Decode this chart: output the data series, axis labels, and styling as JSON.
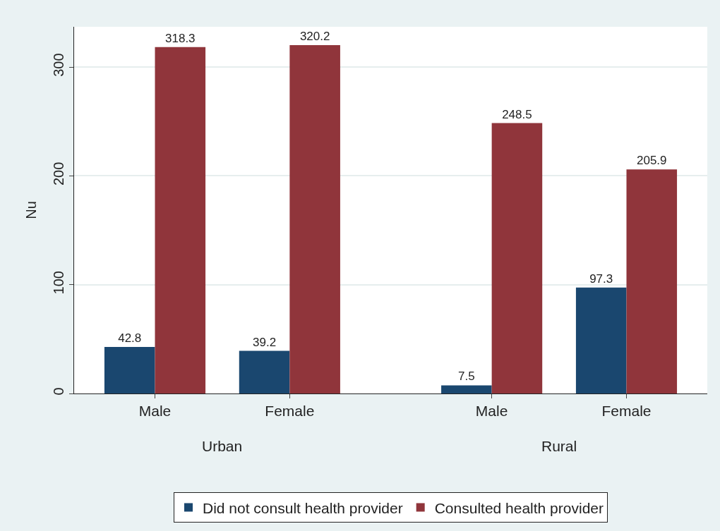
{
  "chart_data": {
    "type": "bar",
    "ylabel": "Nu",
    "categories": [
      "Male",
      "Female",
      "Male",
      "Female"
    ],
    "series": [
      {
        "name": "Did not consult health provider",
        "color": "#1a476f",
        "values": [
          42.8,
          39.2,
          7.5,
          97.3
        ]
      },
      {
        "name": "Consulted health provider",
        "color": "#90353b",
        "values": [
          318.3,
          320.2,
          248.5,
          205.9
        ]
      }
    ],
    "annotations": [
      "Urban",
      "Rural"
    ],
    "ylim": [
      0,
      337
    ],
    "yticks": [
      0,
      100,
      200,
      300
    ],
    "grid": "y",
    "legend": "bottom",
    "data_labels": true
  }
}
